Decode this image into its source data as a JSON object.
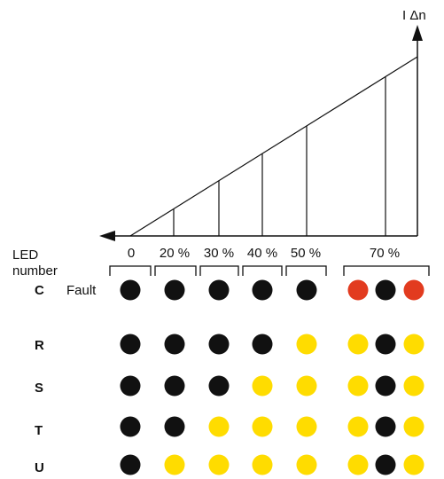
{
  "diagram": {
    "axis_label": "I Δn",
    "ticks": [
      "0",
      "20 %",
      "30 %",
      "40 %",
      "50 %",
      "70 %"
    ],
    "led_label_line1": "LED",
    "led_label_line2": "number",
    "fault_label": "Fault",
    "rows": [
      {
        "label": "C",
        "states": [
          "black",
          "black",
          "black",
          "black",
          "black",
          "red",
          "black",
          "red"
        ]
      },
      {
        "label": "R",
        "states": [
          "black",
          "black",
          "black",
          "black",
          "yellow",
          "yellow",
          "black",
          "yellow"
        ]
      },
      {
        "label": "S",
        "states": [
          "black",
          "black",
          "black",
          "yellow",
          "yellow",
          "yellow",
          "black",
          "yellow"
        ]
      },
      {
        "label": "T",
        "states": [
          "black",
          "black",
          "yellow",
          "yellow",
          "yellow",
          "yellow",
          "black",
          "yellow"
        ]
      },
      {
        "label": "U",
        "states": [
          "black",
          "yellow",
          "yellow",
          "yellow",
          "yellow",
          "yellow",
          "black",
          "yellow"
        ]
      }
    ],
    "colors": {
      "black": "#111111",
      "yellow": "#ffdc00",
      "red": "#e23b1f",
      "line": "#111111"
    }
  }
}
